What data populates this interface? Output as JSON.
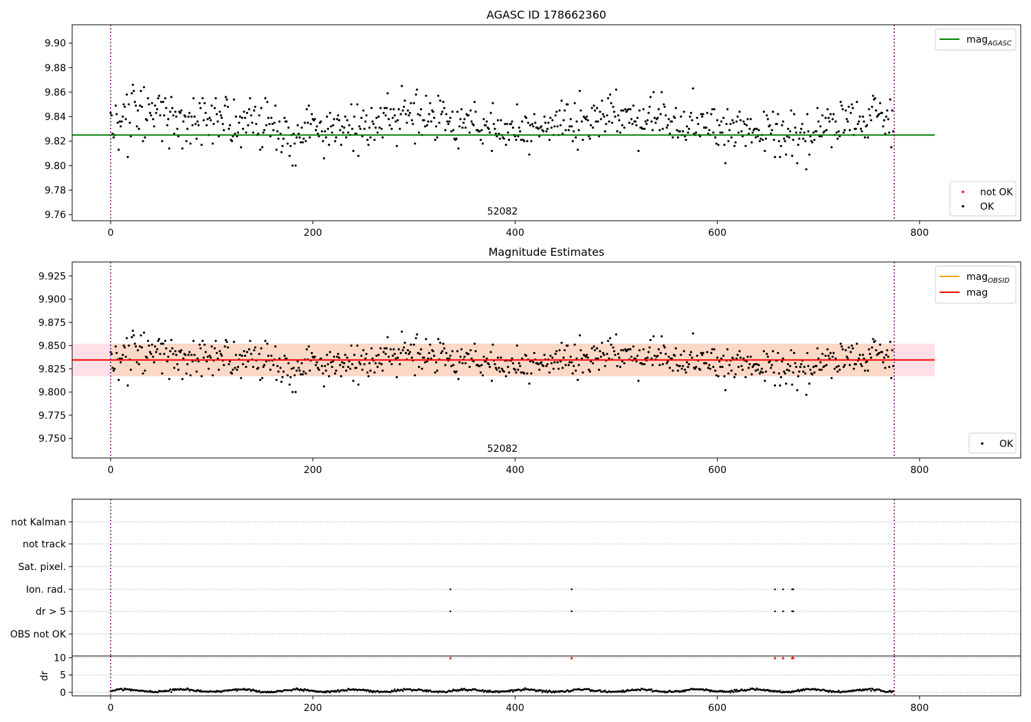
{
  "chart_data": [
    {
      "type": "scatter",
      "title": "AGASC ID 178662360",
      "xlim": [
        -38,
        900
      ],
      "ylim": [
        9.755,
        9.915
      ],
      "xticks": [
        "0",
        "200",
        "400",
        "600",
        "800"
      ],
      "yticks": [
        "9.76",
        "9.78",
        "9.80",
        "9.82",
        "9.84",
        "9.86",
        "9.88",
        "9.90"
      ],
      "obsid_label": "52082",
      "obs_bounds": [
        0,
        775
      ],
      "hline": {
        "name": "mag",
        "sub": "AGASC",
        "value": 9.825,
        "x_end": 815,
        "color": "#008000"
      },
      "legend_lines": [
        {
          "label": "mag",
          "sub": "AGASC",
          "color": "#008000"
        }
      ],
      "legend_markers": [
        {
          "label": "not OK",
          "color": "#ff0000"
        },
        {
          "label": "OK",
          "color": "#000000"
        }
      ],
      "series": [
        {
          "name": "OK",
          "color": "#000000",
          "n": 775,
          "x_start": 0,
          "mean": 9.834,
          "spread": 0.018
        }
      ]
    },
    {
      "type": "scatter",
      "title": "Magnitude Estimates",
      "xlim": [
        -38,
        900
      ],
      "ylim": [
        9.729,
        9.94
      ],
      "xticks": [
        "0",
        "200",
        "400",
        "600",
        "800"
      ],
      "yticks": [
        "9.750",
        "9.775",
        "9.800",
        "9.825",
        "9.850",
        "9.875",
        "9.900",
        "9.925"
      ],
      "obsid_label": "52082",
      "obs_bounds": [
        0,
        775
      ],
      "lines": [
        {
          "name": "mag",
          "sub": "OBSID",
          "value": 9.8345,
          "color": "#ffa500"
        },
        {
          "name": "mag",
          "value": 9.8345,
          "color": "#ff0000"
        }
      ],
      "band": {
        "low": 9.817,
        "high": 9.852,
        "x_end": 815
      },
      "legend_lines": [
        {
          "label": "mag",
          "sub": "OBSID",
          "color": "#ffa500"
        },
        {
          "label": "mag",
          "sub": "",
          "color": "#ff0000"
        }
      ],
      "legend_markers": [
        {
          "label": "OK",
          "color": "#000000"
        }
      ]
    },
    {
      "type": "scatter",
      "title": "",
      "xlim": [
        -38,
        900
      ],
      "xticks": [
        "0",
        "200",
        "400",
        "600",
        "800"
      ],
      "flag_rows": [
        "not Kalman",
        "not track",
        "Sat. pixel.",
        "Ion. rad.",
        "dr > 5",
        "OBS not OK"
      ],
      "flag_events": [
        {
          "row": "Ion. rad.",
          "x": [
            336,
            456,
            657,
            665,
            674,
            675
          ]
        },
        {
          "row": "dr > 5",
          "x": [
            336,
            456,
            657,
            665,
            674,
            675
          ]
        }
      ],
      "dr": {
        "ylabel": "dr",
        "yticks": [
          "0",
          "5",
          "10"
        ],
        "ylim": [
          -1,
          10.5
        ],
        "outliers_x": [
          336,
          456,
          657,
          665,
          674,
          675
        ],
        "outlier_value": 10
      },
      "obs_bounds": [
        0,
        775
      ]
    }
  ]
}
